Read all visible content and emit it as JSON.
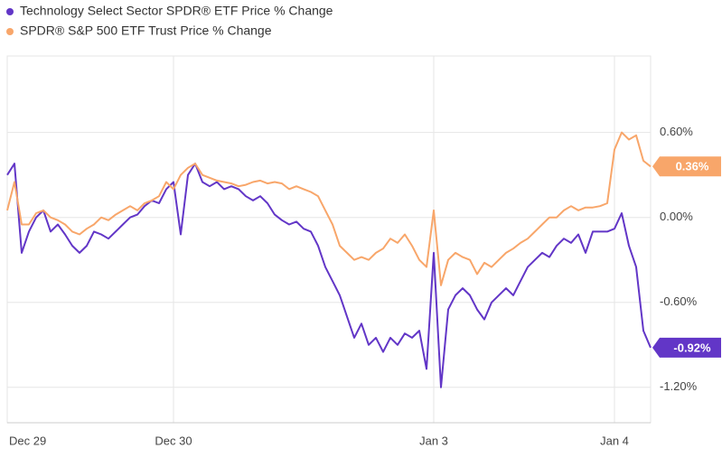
{
  "chart_data": {
    "type": "line",
    "xlim": [
      0,
      89
    ],
    "xticks": [
      {
        "value": 0,
        "label": "Dec 29"
      },
      {
        "value": 23,
        "label": "Dec 30"
      },
      {
        "value": 59,
        "label": "Jan 3"
      },
      {
        "value": 84,
        "label": "Jan 4"
      }
    ],
    "ylim": [
      -1.45,
      1.14
    ],
    "yticks": [
      {
        "value": 0.6,
        "label": "0.60%"
      },
      {
        "value": 0,
        "label": "0.00%"
      },
      {
        "value": -0.6,
        "label": "-0.60%"
      },
      {
        "value": -1.2,
        "label": "-1.20%"
      }
    ],
    "grid": true,
    "legend": "top-left",
    "series": [
      {
        "name": "Technology Select Sector SPDR® ETF Price % Change",
        "color": "#6236c7",
        "values": [
          0.3,
          0.38,
          -0.25,
          -0.1,
          0.0,
          0.05,
          -0.1,
          -0.05,
          -0.12,
          -0.2,
          -0.25,
          -0.2,
          -0.1,
          -0.12,
          -0.15,
          -0.1,
          -0.05,
          0.0,
          0.02,
          0.08,
          0.12,
          0.1,
          0.2,
          0.25,
          -0.12,
          0.3,
          0.38,
          0.25,
          0.22,
          0.25,
          0.2,
          0.22,
          0.2,
          0.15,
          0.12,
          0.15,
          0.1,
          0.02,
          -0.02,
          -0.05,
          -0.03,
          -0.08,
          -0.1,
          -0.2,
          -0.35,
          -0.45,
          -0.55,
          -0.7,
          -0.85,
          -0.75,
          -0.9,
          -0.85,
          -0.95,
          -0.85,
          -0.9,
          -0.82,
          -0.85,
          -0.8,
          -1.07,
          -0.25,
          -1.2,
          -0.65,
          -0.55,
          -0.5,
          -0.55,
          -0.65,
          -0.72,
          -0.6,
          -0.55,
          -0.5,
          -0.55,
          -0.45,
          -0.35,
          -0.3,
          -0.25,
          -0.28,
          -0.2,
          -0.15,
          -0.18,
          -0.12,
          -0.25,
          -0.1,
          -0.1,
          -0.1,
          -0.08,
          0.03,
          -0.2,
          -0.35,
          -0.8,
          -0.92
        ],
        "value_labels": [
          null,
          null,
          null,
          null,
          null,
          null,
          null,
          null,
          null,
          null,
          null,
          null,
          null,
          null,
          null,
          null,
          null,
          null,
          null,
          null,
          null,
          null,
          null,
          null,
          null,
          null,
          null,
          null,
          null,
          null,
          null,
          null,
          null,
          null,
          null,
          null,
          null,
          null,
          null,
          null,
          null,
          null,
          null,
          null,
          null,
          null,
          null,
          null,
          null,
          null,
          null,
          null,
          null,
          null,
          null,
          null,
          null,
          null,
          null,
          null,
          null,
          null,
          null,
          null,
          null,
          null,
          null,
          null,
          null,
          null,
          null,
          null,
          null,
          null,
          null,
          null,
          null,
          null,
          null,
          null,
          null,
          null,
          null,
          null,
          null,
          null,
          null,
          null,
          null,
          "-0.92%"
        ]
      },
      {
        "name": "SPDR® S&P 500 ETF Trust Price % Change",
        "color": "#f8a66a",
        "values": [
          0.05,
          0.25,
          -0.05,
          -0.05,
          0.03,
          0.05,
          0.0,
          -0.02,
          -0.05,
          -0.1,
          -0.12,
          -0.08,
          -0.05,
          0.0,
          -0.02,
          0.02,
          0.05,
          0.08,
          0.05,
          0.1,
          0.12,
          0.15,
          0.25,
          0.2,
          0.3,
          0.35,
          0.38,
          0.3,
          0.28,
          0.26,
          0.25,
          0.24,
          0.22,
          0.23,
          0.25,
          0.26,
          0.24,
          0.25,
          0.24,
          0.2,
          0.22,
          0.2,
          0.18,
          0.15,
          0.05,
          -0.05,
          -0.2,
          -0.25,
          -0.3,
          -0.28,
          -0.3,
          -0.25,
          -0.22,
          -0.15,
          -0.18,
          -0.12,
          -0.2,
          -0.3,
          -0.35,
          0.05,
          -0.48,
          -0.3,
          -0.25,
          -0.28,
          -0.3,
          -0.4,
          -0.32,
          -0.35,
          -0.3,
          -0.25,
          -0.22,
          -0.18,
          -0.15,
          -0.1,
          -0.05,
          0.0,
          0.0,
          0.05,
          0.08,
          0.05,
          0.07,
          0.07,
          0.08,
          0.1,
          0.48,
          0.6,
          0.55,
          0.58,
          0.4,
          0.36
        ],
        "value_labels": [
          null,
          null,
          null,
          null,
          null,
          null,
          null,
          null,
          null,
          null,
          null,
          null,
          null,
          null,
          null,
          null,
          null,
          null,
          null,
          null,
          null,
          null,
          null,
          null,
          null,
          null,
          null,
          null,
          null,
          null,
          null,
          null,
          null,
          null,
          null,
          null,
          null,
          null,
          null,
          null,
          null,
          null,
          null,
          null,
          null,
          null,
          null,
          null,
          null,
          null,
          null,
          null,
          null,
          null,
          null,
          null,
          null,
          null,
          null,
          null,
          null,
          null,
          null,
          null,
          null,
          null,
          null,
          null,
          null,
          null,
          null,
          null,
          null,
          null,
          null,
          null,
          null,
          null,
          null,
          null,
          null,
          null,
          null,
          null,
          null,
          null,
          null,
          null,
          null,
          "0.36%"
        ]
      }
    ]
  }
}
